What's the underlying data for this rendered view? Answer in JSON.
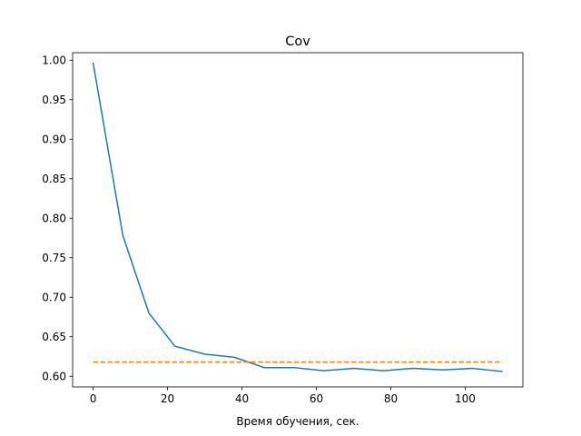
{
  "chart_data": {
    "type": "line",
    "title": "Cov",
    "xlabel": "Время обучения, сек.",
    "ylabel": "",
    "xlim": [
      -5.5,
      115.5
    ],
    "ylim": [
      0.5865,
      1.0095
    ],
    "x_ticks": [
      0,
      20,
      40,
      60,
      80,
      100
    ],
    "x_tick_labels": [
      "0",
      "20",
      "40",
      "60",
      "80",
      "100"
    ],
    "y_ticks": [
      0.6,
      0.65,
      0.7,
      0.75,
      0.8,
      0.85,
      0.9,
      0.95,
      1.0
    ],
    "y_tick_labels": [
      "0.60",
      "0.65",
      "0.70",
      "0.75",
      "0.80",
      "0.85",
      "0.90",
      "0.95",
      "1.00"
    ],
    "grid": false,
    "legend": "none",
    "series": [
      {
        "style": "solid",
        "color": "#1f77b4",
        "x": [
          0,
          8,
          15,
          22,
          30,
          38,
          46,
          54,
          62,
          70,
          78,
          86,
          94,
          102,
          110
        ],
        "y": [
          0.997,
          0.778,
          0.68,
          0.638,
          0.628,
          0.624,
          0.611,
          0.611,
          0.607,
          0.61,
          0.607,
          0.61,
          0.608,
          0.61,
          0.606
        ]
      },
      {
        "style": "dashed",
        "color": "#ff7f0e",
        "x": [
          0,
          110
        ],
        "y": [
          0.618,
          0.618
        ]
      }
    ]
  }
}
